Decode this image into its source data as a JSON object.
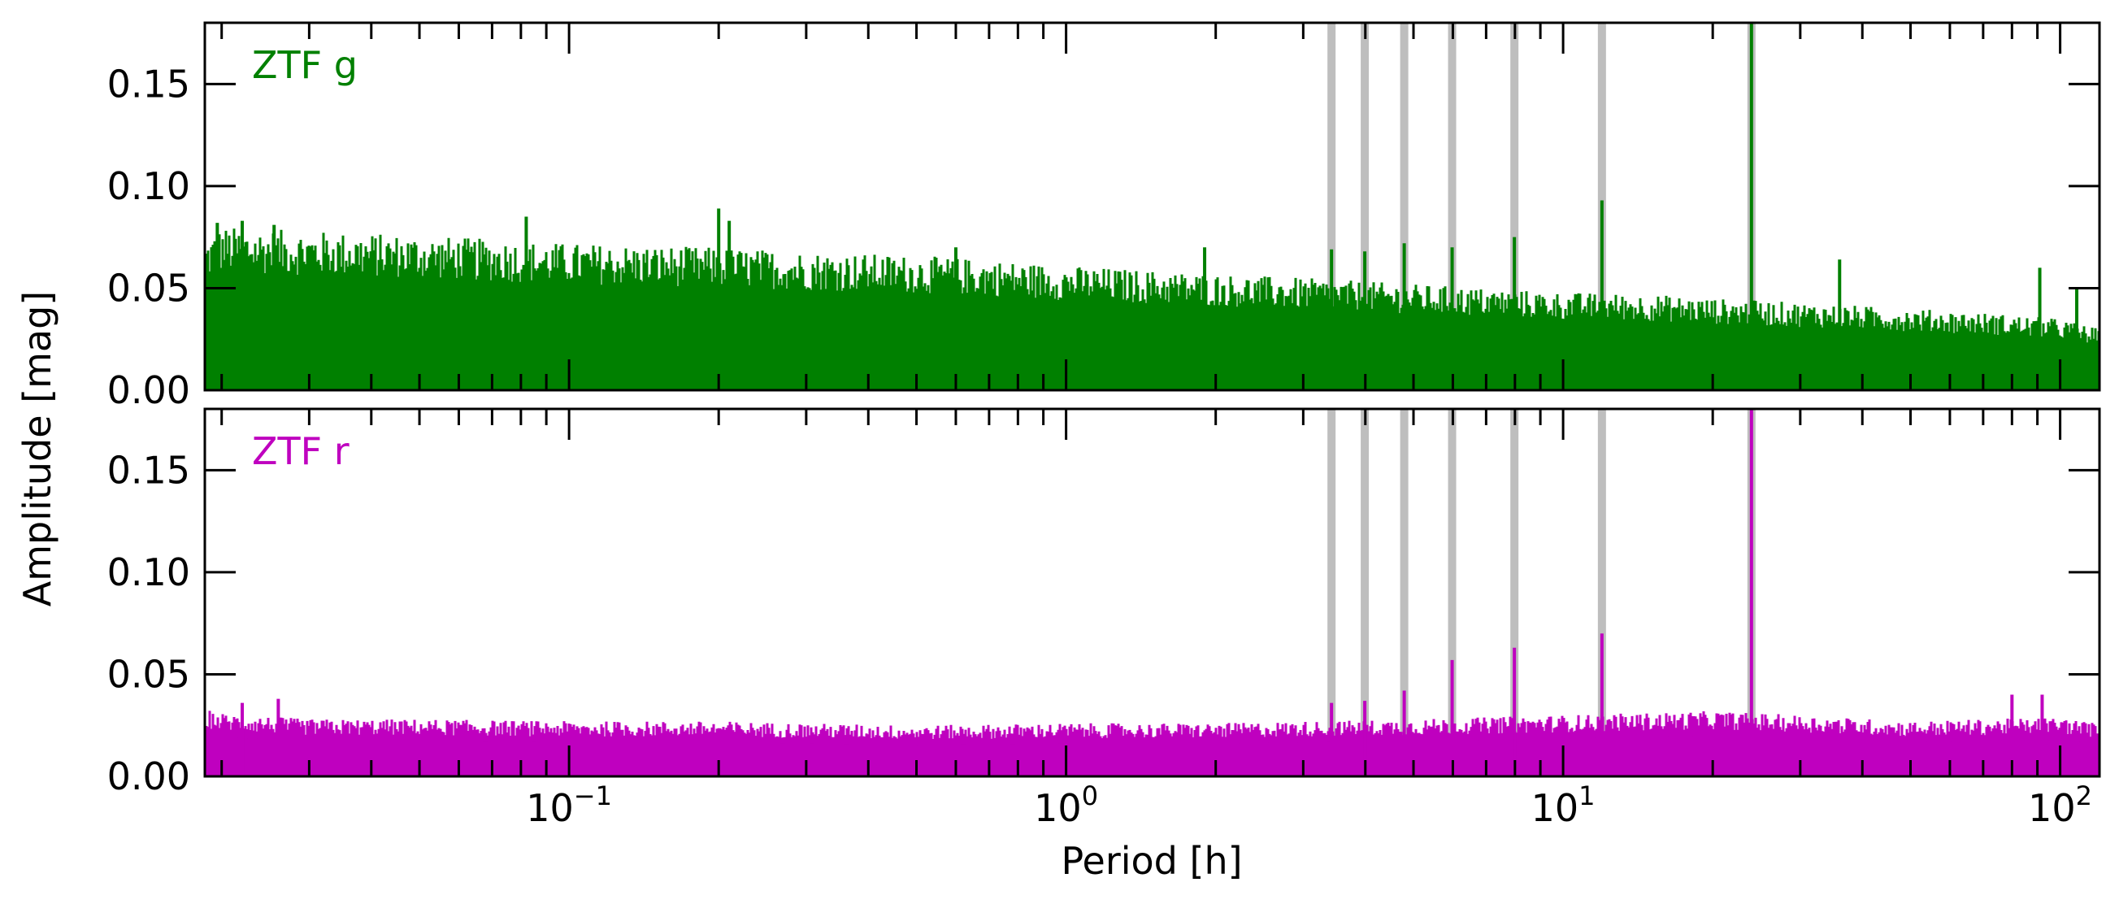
{
  "chart_data": {
    "type": "line",
    "x_scale": "log",
    "xlabel": "Period [h]",
    "ylabel": "Amplitude [mag]",
    "xlim": [
      0.0185,
      120
    ],
    "x_ticks": [
      {
        "value": 0.1,
        "base": "10",
        "exp": "−1"
      },
      {
        "value": 1,
        "base": "10",
        "exp": "0"
      },
      {
        "value": 10,
        "base": "10",
        "exp": "1"
      },
      {
        "value": 100,
        "base": "10",
        "exp": "2"
      }
    ],
    "y_ticks": [
      "0.00",
      "0.05",
      "0.10",
      "0.15"
    ],
    "highlighted_periods_h": [
      3.42,
      3.99,
      4.79,
      5.98,
      7.98,
      11.97,
      23.93
    ],
    "panels": [
      {
        "label": "ZTF g",
        "color": "#008000",
        "ylim": [
          0,
          0.18
        ],
        "series": {
          "x": [
            0.0185,
            0.02,
            0.03,
            0.05,
            0.07,
            0.1,
            0.2,
            0.3,
            0.5,
            0.7,
            1,
            2,
            3,
            5,
            7,
            10,
            15,
            20,
            30,
            50,
            70,
            100,
            120
          ],
          "y_max": [
            0.074,
            0.08,
            0.078,
            0.076,
            0.074,
            0.072,
            0.07,
            0.068,
            0.066,
            0.064,
            0.061,
            0.057,
            0.055,
            0.052,
            0.05,
            0.048,
            0.047,
            0.045,
            0.043,
            0.04,
            0.038,
            0.035,
            0.03
          ]
        },
        "peaks": [
          {
            "x": 0.0196,
            "y": 0.082
          },
          {
            "x": 0.022,
            "y": 0.083
          },
          {
            "x": 0.0255,
            "y": 0.081
          },
          {
            "x": 0.082,
            "y": 0.085
          },
          {
            "x": 0.2,
            "y": 0.089
          },
          {
            "x": 0.21,
            "y": 0.083
          },
          {
            "x": 0.6,
            "y": 0.07
          },
          {
            "x": 1.9,
            "y": 0.07
          },
          {
            "x": 3.42,
            "y": 0.069
          },
          {
            "x": 3.99,
            "y": 0.068
          },
          {
            "x": 4.79,
            "y": 0.072
          },
          {
            "x": 5.98,
            "y": 0.07
          },
          {
            "x": 7.98,
            "y": 0.075
          },
          {
            "x": 11.97,
            "y": 0.093
          },
          {
            "x": 23.93,
            "y": 0.18
          },
          {
            "x": 36,
            "y": 0.064
          },
          {
            "x": 91,
            "y": 0.06
          },
          {
            "x": 108,
            "y": 0.05
          }
        ]
      },
      {
        "label": "ZTF r",
        "color": "#BF00BF",
        "ylim": [
          0,
          0.18
        ],
        "series": {
          "x": [
            0.0185,
            0.02,
            0.03,
            0.05,
            0.1,
            0.2,
            0.3,
            0.5,
            1,
            2,
            3,
            5,
            10,
            20,
            30,
            50,
            100,
            120
          ],
          "y_max": [
            0.033,
            0.031,
            0.028,
            0.028,
            0.027,
            0.027,
            0.026,
            0.025,
            0.026,
            0.026,
            0.027,
            0.028,
            0.03,
            0.032,
            0.03,
            0.027,
            0.029,
            0.026
          ]
        },
        "peaks": [
          {
            "x": 0.022,
            "y": 0.036
          },
          {
            "x": 0.026,
            "y": 0.038
          },
          {
            "x": 3.42,
            "y": 0.036
          },
          {
            "x": 3.99,
            "y": 0.037
          },
          {
            "x": 4.79,
            "y": 0.042
          },
          {
            "x": 5.98,
            "y": 0.057
          },
          {
            "x": 7.98,
            "y": 0.063
          },
          {
            "x": 11.97,
            "y": 0.07
          },
          {
            "x": 23.93,
            "y": 0.18
          },
          {
            "x": 80,
            "y": 0.04
          },
          {
            "x": 92,
            "y": 0.04
          }
        ]
      }
    ],
    "grid": false,
    "legend": "none"
  },
  "colors": {
    "highlight": "#BEBEBE",
    "axis": "#000000"
  }
}
